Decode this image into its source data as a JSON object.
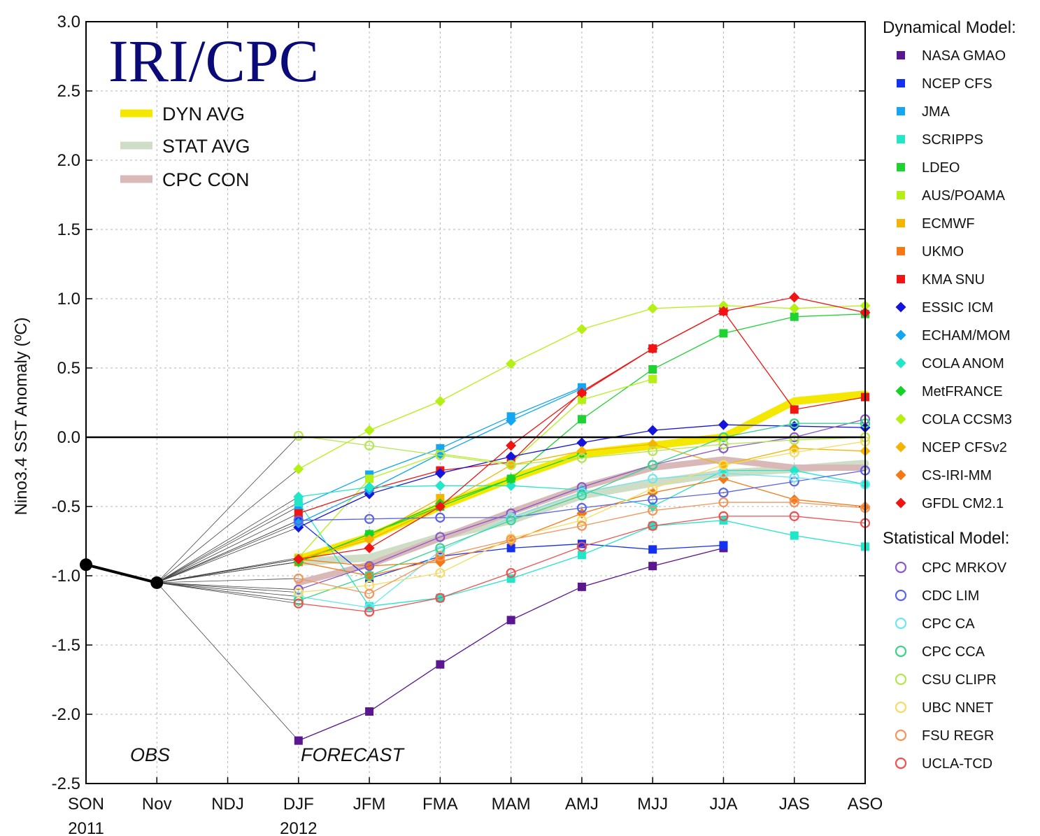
{
  "logo_text": "IRI/CPC",
  "ylabel": "Nino3.4 SST Anomaly (ºC)",
  "annotations": {
    "obs": "OBS",
    "forecast": "FORECAST"
  },
  "legend": {
    "dyn_header": "Dynamical Model:",
    "stat_header": "Statistical Model:"
  },
  "chart_data": {
    "type": "line",
    "ylim": [
      -2.5,
      3.0
    ],
    "yticks": [
      3.0,
      2.5,
      2.0,
      1.5,
      1.0,
      0.5,
      0.0,
      -0.5,
      -1.0,
      -1.5,
      -2.0,
      -2.5
    ],
    "ytick_labels": [
      "3.0",
      "2.5",
      "2.0",
      "1.5",
      "1.0",
      "0.5",
      "0.0",
      "-0.5",
      "-1.0",
      "-1.5",
      "-2.0",
      "-2.5"
    ],
    "categories": [
      "SON",
      "Nov",
      "NDJ",
      "DJF",
      "JFM",
      "FMA",
      "MAM",
      "AMJ",
      "MJJ",
      "JJA",
      "JAS",
      "ASO"
    ],
    "year_labels": [
      {
        "index": 0,
        "label": "2011"
      },
      {
        "index": 3,
        "label": "2012"
      }
    ],
    "grid": true,
    "observed": {
      "values": [
        -0.92,
        -1.05
      ]
    },
    "averages": [
      {
        "name": "DYN AVG",
        "color": "#f4e800",
        "values": [
          null,
          null,
          null,
          -0.88,
          -0.72,
          -0.5,
          -0.3,
          -0.12,
          -0.06,
          0.0,
          0.26,
          0.31
        ]
      },
      {
        "name": "STAT AVG",
        "color": "#cfdcc6",
        "values": [
          null,
          null,
          null,
          -0.9,
          -0.87,
          -0.72,
          -0.6,
          -0.42,
          -0.33,
          -0.26,
          -0.23,
          -0.19
        ]
      },
      {
        "name": "CPC CON",
        "color": "#d8b9b8",
        "values": [
          null,
          null,
          null,
          -1.05,
          -0.92,
          -0.73,
          -0.54,
          -0.36,
          -0.22,
          -0.16,
          -0.22,
          -0.22
        ]
      }
    ],
    "series": [
      {
        "name": "NASA GMAO",
        "group": "dynamical",
        "marker": "square",
        "color": "#5a1790",
        "values": [
          null,
          null,
          null,
          -2.19,
          -1.98,
          -1.64,
          -1.32,
          -1.08,
          -0.93,
          -0.8,
          null,
          null
        ]
      },
      {
        "name": "NCEP CFS",
        "group": "dynamical",
        "marker": "square",
        "color": "#1430f0",
        "values": [
          null,
          null,
          null,
          -0.6,
          -1.02,
          -0.86,
          -0.8,
          -0.77,
          -0.81,
          -0.78,
          null,
          null
        ]
      },
      {
        "name": "JMA",
        "group": "dynamical",
        "marker": "square",
        "color": "#14a6f0",
        "values": [
          null,
          null,
          null,
          -0.5,
          -0.27,
          -0.08,
          0.15,
          0.36,
          null,
          null,
          null,
          null
        ]
      },
      {
        "name": "SCRIPPS",
        "group": "dynamical",
        "marker": "square",
        "color": "#22e6c8",
        "values": [
          null,
          null,
          null,
          -0.47,
          -1.22,
          -1.16,
          -1.02,
          -0.85,
          -0.64,
          -0.6,
          -0.71,
          -0.79
        ]
      },
      {
        "name": "LDEO",
        "group": "dynamical",
        "marker": "square",
        "color": "#1ed232",
        "values": [
          null,
          null,
          null,
          -0.9,
          -0.7,
          -0.5,
          -0.3,
          0.13,
          0.49,
          0.75,
          0.87,
          0.89
        ]
      },
      {
        "name": "AUS/POAMA",
        "group": "dynamical",
        "marker": "square",
        "color": "#b4f014",
        "values": [
          null,
          null,
          null,
          -0.87,
          -0.3,
          -0.12,
          -0.19,
          0.27,
          0.42,
          null,
          null,
          null
        ]
      },
      {
        "name": "ECMWF",
        "group": "dynamical",
        "marker": "square",
        "color": "#f5b400",
        "values": [
          null,
          null,
          null,
          -0.88,
          -0.72,
          -0.44,
          null,
          null,
          null,
          null,
          null,
          null
        ]
      },
      {
        "name": "UKMO",
        "group": "dynamical",
        "marker": "square",
        "color": "#f57814",
        "values": [
          null,
          null,
          null,
          -0.9,
          -1.0,
          -0.88,
          null,
          null,
          null,
          null,
          null,
          null
        ]
      },
      {
        "name": "KMA SNU",
        "group": "dynamical",
        "marker": "square",
        "color": "#f01414",
        "values": [
          null,
          null,
          null,
          -0.55,
          -0.38,
          -0.24,
          -0.18,
          0.33,
          0.64,
          0.91,
          0.2,
          0.29
        ]
      },
      {
        "name": "ESSIC ICM",
        "group": "dynamical",
        "marker": "diamond",
        "color": "#1414dc",
        "values": [
          null,
          null,
          null,
          -0.65,
          -0.41,
          -0.26,
          -0.14,
          -0.04,
          0.05,
          0.09,
          0.08,
          0.07
        ]
      },
      {
        "name": "ECHAM/MOM",
        "group": "dynamical",
        "marker": "diamond",
        "color": "#14a6f0",
        "values": [
          null,
          null,
          null,
          -0.62,
          -0.38,
          -0.12,
          0.12,
          0.35,
          null,
          null,
          null,
          null
        ]
      },
      {
        "name": "COLA ANOM",
        "group": "dynamical",
        "marker": "diamond",
        "color": "#22e6c8",
        "values": [
          null,
          null,
          null,
          -0.43,
          -0.36,
          -0.35,
          -0.35,
          -0.38,
          -0.5,
          -0.24,
          -0.24,
          -0.34
        ]
      },
      {
        "name": "MetFRANCE",
        "group": "dynamical",
        "marker": "diamond",
        "color": "#14d228",
        "values": [
          null,
          null,
          null,
          -0.9,
          -0.7,
          -0.48,
          -0.3,
          -0.12,
          null,
          null,
          null,
          null
        ]
      },
      {
        "name": "COLA CCSM3",
        "group": "dynamical",
        "marker": "diamond",
        "color": "#b4f014",
        "values": [
          null,
          null,
          null,
          -0.23,
          0.05,
          0.26,
          0.53,
          0.78,
          0.93,
          0.95,
          0.93,
          0.95
        ]
      },
      {
        "name": "NCEP CFSv2",
        "group": "dynamical",
        "marker": "diamond",
        "color": "#f5b400",
        "values": [
          null,
          null,
          null,
          -0.88,
          -0.74,
          -0.5,
          -0.2,
          -0.1,
          -0.05,
          -0.2,
          -0.08,
          -0.1
        ]
      },
      {
        "name": "CS-IRI-MM",
        "group": "dynamical",
        "marker": "diamond",
        "color": "#f57814",
        "values": [
          null,
          null,
          null,
          -0.88,
          -0.93,
          -0.9,
          -0.75,
          -0.55,
          -0.4,
          -0.3,
          -0.45,
          -0.5
        ]
      },
      {
        "name": "GFDL CM2.1",
        "group": "dynamical",
        "marker": "diamond",
        "color": "#f01414",
        "values": [
          null,
          null,
          null,
          -0.88,
          -0.8,
          -0.5,
          -0.06,
          0.32,
          0.64,
          0.91,
          1.01,
          0.9
        ]
      },
      {
        "name": "CPC MRKOV",
        "group": "statistical",
        "marker": "circle",
        "color": "#8a5ac8",
        "values": [
          null,
          null,
          null,
          -1.1,
          -0.93,
          -0.72,
          -0.55,
          -0.36,
          -0.2,
          -0.08,
          0.0,
          0.13
        ]
      },
      {
        "name": "CDC LIM",
        "group": "statistical",
        "marker": "circle",
        "color": "#5a64e6",
        "values": [
          null,
          null,
          null,
          -0.6,
          -0.59,
          -0.58,
          -0.58,
          -0.51,
          -0.45,
          -0.4,
          -0.32,
          -0.24
        ]
      },
      {
        "name": "CPC CA",
        "group": "statistical",
        "marker": "circle",
        "color": "#6ee6f0",
        "values": [
          null,
          null,
          null,
          -1.15,
          -1.23,
          -0.82,
          -0.58,
          -0.4,
          -0.3,
          -0.26,
          -0.29,
          -0.34
        ]
      },
      {
        "name": "CPC CCA",
        "group": "statistical",
        "marker": "circle",
        "color": "#3cd28c",
        "values": [
          null,
          null,
          null,
          -1.18,
          -1.0,
          -0.8,
          -0.6,
          -0.42,
          -0.2,
          0.0,
          0.1,
          0.1
        ]
      },
      {
        "name": "CSU CLIPR",
        "group": "statistical",
        "marker": "circle",
        "color": "#b4e650",
        "values": [
          null,
          null,
          null,
          0.01,
          -0.06,
          -0.13,
          -0.2,
          -0.15,
          -0.1,
          -0.05,
          -0.02,
          0.0
        ]
      },
      {
        "name": "UBC NNET",
        "group": "statistical",
        "marker": "circle",
        "color": "#f5dc64",
        "values": [
          null,
          null,
          null,
          -1.12,
          -1.07,
          -0.98,
          -0.73,
          -0.6,
          -0.37,
          -0.2,
          -0.11,
          -0.03
        ]
      },
      {
        "name": "FSU REGR",
        "group": "statistical",
        "marker": "circle",
        "color": "#f0965a",
        "values": [
          null,
          null,
          null,
          -1.02,
          -1.13,
          -0.86,
          -0.74,
          -0.64,
          -0.53,
          -0.47,
          -0.47,
          -0.51
        ]
      },
      {
        "name": "UCLA-TCD",
        "group": "statistical",
        "marker": "circle",
        "color": "#f05050",
        "values": [
          null,
          null,
          null,
          -1.2,
          -1.26,
          -1.16,
          -0.98,
          -0.79,
          -0.64,
          -0.57,
          -0.57,
          -0.62
        ]
      }
    ]
  }
}
